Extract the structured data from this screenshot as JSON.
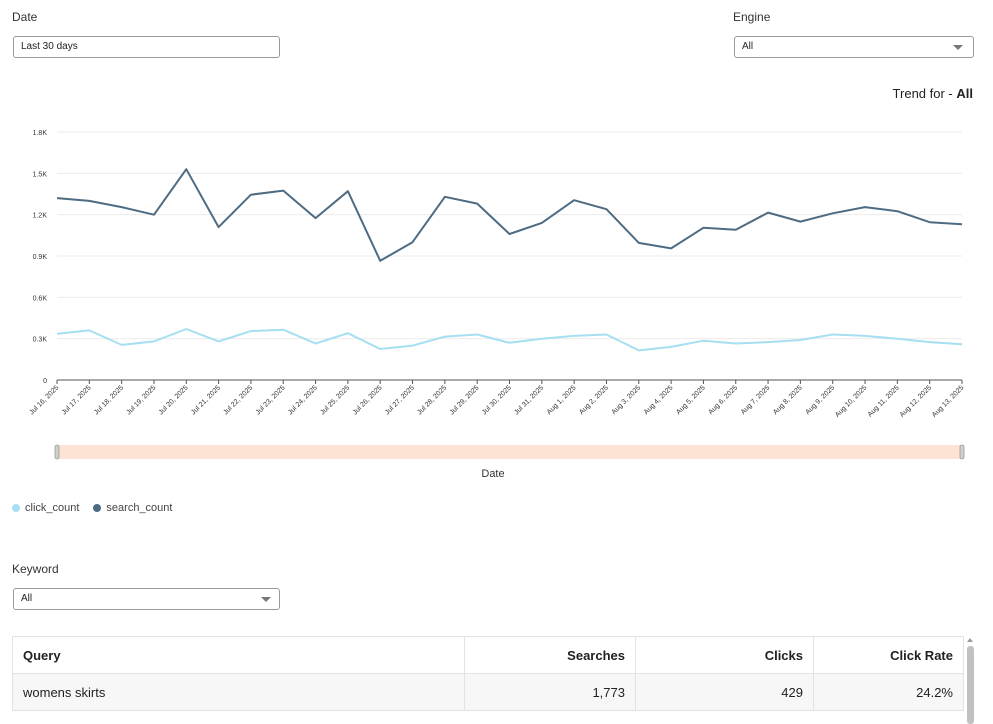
{
  "filters": {
    "date_label": "Date",
    "date_value": "Last 30 days",
    "engine_label": "Engine",
    "engine_value": "All",
    "keyword_label": "Keyword",
    "keyword_value": "All"
  },
  "trend": {
    "prefix": "Trend for - ",
    "value": "All",
    "xlabel": "Date"
  },
  "colors": {
    "search_count": "#4d6b82",
    "click_count": "#a6dff1",
    "range_fill": "#fde3d4"
  },
  "chart_data": {
    "type": "line",
    "categories": [
      "Jul 16, 2025",
      "Jul 17, 2025",
      "Jul 18, 2025",
      "Jul 19, 2025",
      "Jul 20, 2025",
      "Jul 21, 2025",
      "Jul 22, 2025",
      "Jul 23, 2025",
      "Jul 24, 2025",
      "Jul 25, 2025",
      "Jul 26, 2025",
      "Jul 27, 2025",
      "Jul 28, 2025",
      "Jul 29, 2025",
      "Jul 30, 2025",
      "Jul 31, 2025",
      "Aug 1, 2025",
      "Aug 2, 2025",
      "Aug 3, 2025",
      "Aug 4, 2025",
      "Aug 5, 2025",
      "Aug 6, 2025",
      "Aug 7, 2025",
      "Aug 8, 2025",
      "Aug 9, 2025",
      "Aug 10, 2025",
      "Aug 11, 2025",
      "Aug 12, 2025",
      "Aug 13, 2025"
    ],
    "series": [
      {
        "name": "search_count",
        "values": [
          1320,
          1300,
          1255,
          1200,
          1530,
          1110,
          1345,
          1375,
          1175,
          1370,
          865,
          1000,
          1330,
          1280,
          1060,
          1140,
          1305,
          1240,
          995,
          955,
          1105,
          1090,
          1215,
          1150,
          1210,
          1255,
          1225,
          1145,
          1130
        ]
      },
      {
        "name": "click_count",
        "values": [
          335,
          360,
          255,
          280,
          370,
          280,
          355,
          365,
          265,
          340,
          225,
          250,
          315,
          330,
          270,
          300,
          320,
          330,
          215,
          240,
          285,
          265,
          275,
          290,
          330,
          320,
          300,
          275,
          260
        ]
      }
    ],
    "yticks": [
      "0",
      "0.3K",
      "0.6K",
      "0.9K",
      "1.2K",
      "1.5K",
      "1.8K"
    ],
    "ytick_values": [
      0,
      300,
      600,
      900,
      1200,
      1500,
      1800
    ],
    "ylim": [
      0,
      1800
    ],
    "grid": true,
    "legend": "bottom-left",
    "xlabel": "Date"
  },
  "legend": {
    "items": [
      {
        "name": "click_count"
      },
      {
        "name": "search_count"
      }
    ]
  },
  "table": {
    "headers": [
      "Query",
      "Searches",
      "Clicks",
      "Click Rate"
    ],
    "rows": [
      {
        "query": "womens skirts",
        "searches": "1,773",
        "clicks": "429",
        "rate": "24.2%"
      }
    ]
  }
}
